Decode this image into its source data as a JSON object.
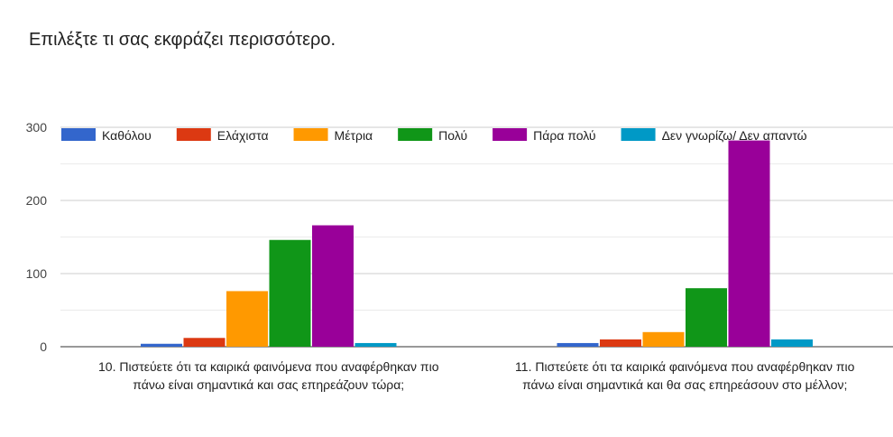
{
  "title": "Επιλέξτε τι σας εκφράζει περισσότερο.",
  "chart_data": {
    "type": "bar",
    "title": "Επιλέξτε τι σας εκφράζει περισσότερο.",
    "categories": [
      [
        "10. Πιστεύετε ότι τα καιρικά φαινόμενα που αναφέρθηκαν πιο",
        "πάνω είναι σημαντικά και σας επηρεάζουν τώρα;"
      ],
      [
        "11. Πιστεύετε ότι τα καιρικά φαινόμενα που αναφέρθηκαν πιο",
        "πάνω είναι σημαντικά και θα σας επηρεάσουν στο μέλλον;"
      ]
    ],
    "series": [
      {
        "name": "Καθόλου",
        "color": "#3366cc",
        "values": [
          4,
          5
        ]
      },
      {
        "name": "Ελάχιστα",
        "color": "#dc3912",
        "values": [
          12,
          10
        ]
      },
      {
        "name": "Μέτρια",
        "color": "#ff9900",
        "values": [
          76,
          20
        ]
      },
      {
        "name": "Πολύ",
        "color": "#109618",
        "values": [
          146,
          80
        ]
      },
      {
        "name": "Πάρα πολύ",
        "color": "#990099",
        "values": [
          166,
          282
        ]
      },
      {
        "name": "Δεν γνωρίζω/ Δεν απαντώ",
        "color": "#0099c6",
        "values": [
          5,
          10
        ]
      }
    ],
    "yticks": [
      0,
      100,
      200,
      300
    ],
    "ylim": [
      0,
      300
    ],
    "grid": true,
    "legend": "top"
  }
}
